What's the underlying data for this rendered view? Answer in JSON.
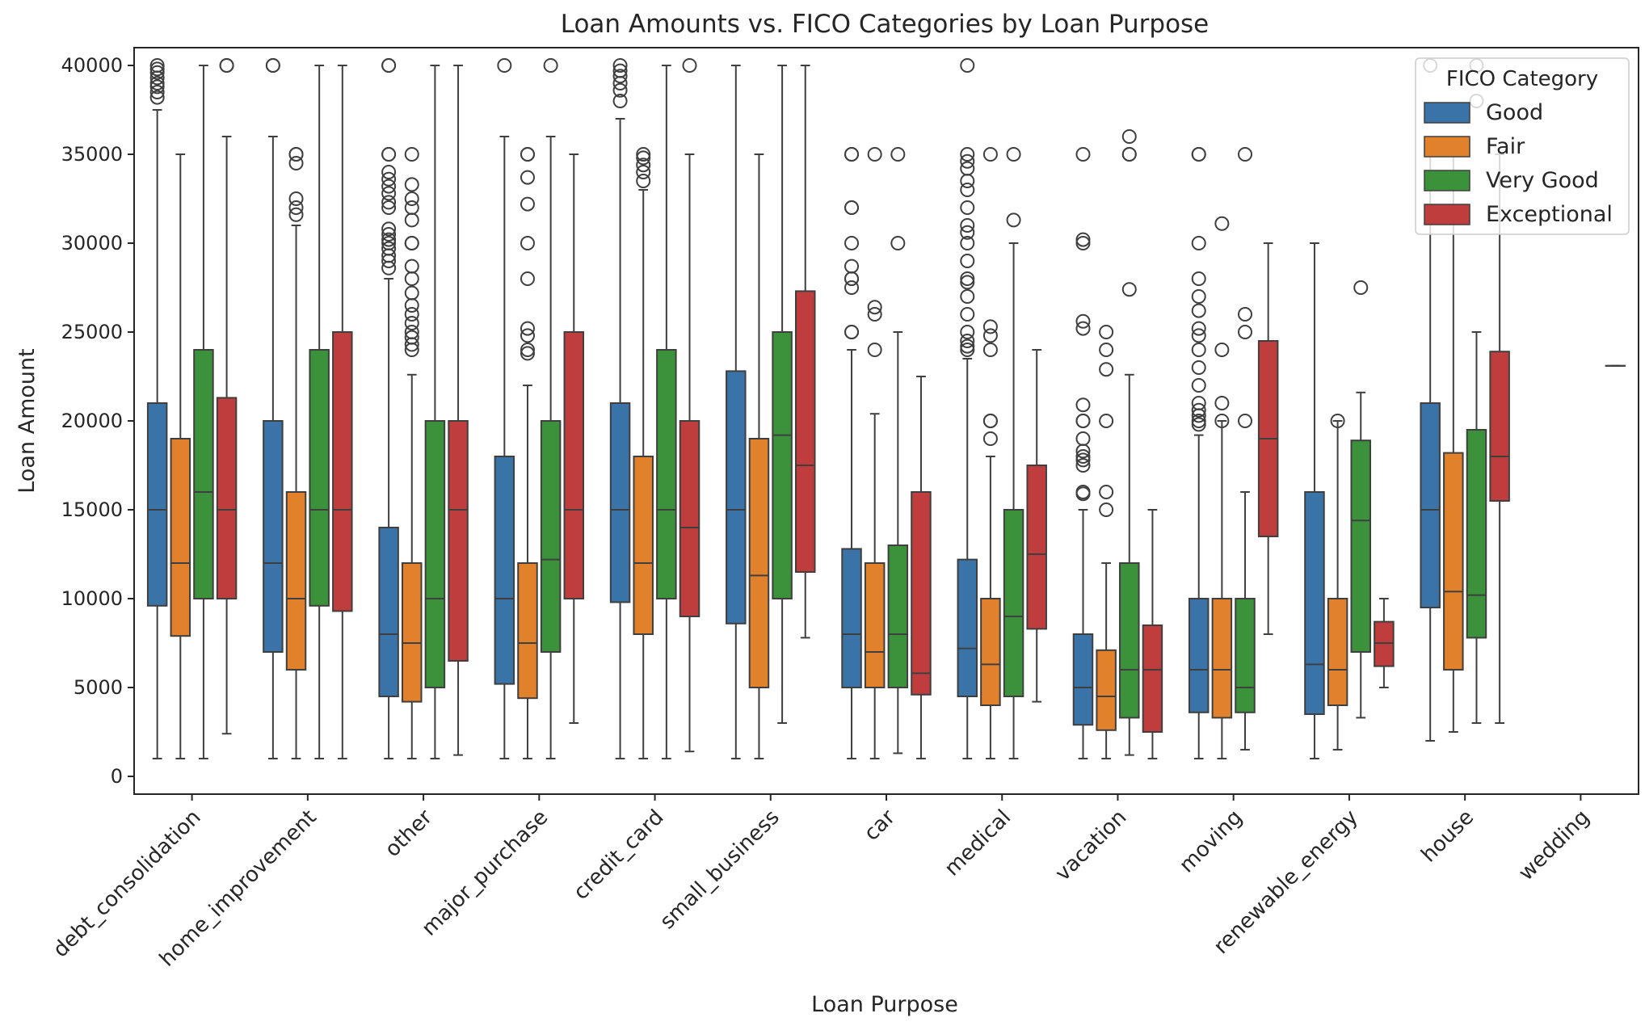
{
  "chart_data": {
    "type": "boxplot",
    "title": "Loan Amounts vs. FICO Categories by Loan Purpose",
    "xlabel": "Loan Purpose",
    "ylabel": "Loan Amount",
    "ylim": [
      -1000,
      41000
    ],
    "yticks": [
      0,
      5000,
      10000,
      15000,
      20000,
      25000,
      30000,
      35000,
      40000
    ],
    "grid": false,
    "legend": {
      "title": "FICO Category",
      "placement": "top-right",
      "entries": [
        "Good",
        "Fair",
        "Very Good",
        "Exceptional"
      ]
    },
    "series_colors": {
      "Good": "#3a73a7",
      "Fair": "#e1812c",
      "Very Good": "#3b923b",
      "Exceptional": "#c03d3e"
    },
    "categories": [
      "debt_consolidation",
      "home_improvement",
      "other",
      "major_purchase",
      "credit_card",
      "small_business",
      "car",
      "medical",
      "vacation",
      "moving",
      "renewable_energy",
      "house",
      "wedding"
    ],
    "series": [
      {
        "name": "Good",
        "boxes": [
          {
            "whislo": 1000,
            "q1": 9600,
            "med": 15000,
            "q3": 21000,
            "whishi": 37500,
            "fliers": [
              38200,
              38500,
              38800,
              39000,
              39300,
              39600,
              39800,
              40000
            ]
          },
          {
            "whislo": 1000,
            "q1": 7000,
            "med": 12000,
            "q3": 20000,
            "whishi": 36000,
            "fliers": [
              40000,
              40000
            ]
          },
          {
            "whislo": 1000,
            "q1": 4500,
            "med": 8000,
            "q3": 14000,
            "whishi": 28000,
            "fliers": [
              28600,
              29000,
              29300,
              29700,
              30000,
              30200,
              30500,
              30800,
              32000,
              32300,
              32800,
              33200,
              33600,
              34000,
              35000,
              35000,
              40000,
              40000
            ]
          },
          {
            "whislo": 1000,
            "q1": 5200,
            "med": 10000,
            "q3": 18000,
            "whishi": 36000,
            "fliers": [
              40000
            ]
          },
          {
            "whislo": 1000,
            "q1": 9800,
            "med": 15000,
            "q3": 21000,
            "whishi": 37000,
            "fliers": [
              38000,
              38600,
              39000,
              39400,
              39700,
              40000
            ]
          },
          {
            "whislo": 1000,
            "q1": 8600,
            "med": 15000,
            "q3": 22800,
            "whishi": 40000,
            "fliers": []
          },
          {
            "whislo": 1000,
            "q1": 5000,
            "med": 8000,
            "q3": 12800,
            "whishi": 24000,
            "fliers": [
              25000,
              25000,
              27500,
              28000,
              28000,
              28700,
              30000,
              32000,
              32000,
              35000,
              35000
            ]
          },
          {
            "whislo": 1000,
            "q1": 4500,
            "med": 7200,
            "q3": 12200,
            "whishi": 23500,
            "fliers": [
              24000,
              24200,
              24500,
              25000,
              26000,
              27000,
              27800,
              28000,
              29000,
              30000,
              30600,
              31000,
              32000,
              33000,
              33500,
              34200,
              34600,
              35000,
              40000
            ]
          },
          {
            "whislo": 1000,
            "q1": 2900,
            "med": 5000,
            "q3": 8000,
            "whishi": 15000,
            "fliers": [
              15900,
              16000,
              17500,
              17800,
              18000,
              18300,
              19000,
              20000,
              20000,
              20900,
              25200,
              25600,
              30000,
              30200,
              35000
            ]
          },
          {
            "whislo": 1000,
            "q1": 3600,
            "med": 6000,
            "q3": 10000,
            "whishi": 19200,
            "fliers": [
              19800,
              20000,
              20300,
              20600,
              21000,
              22000,
              23000,
              24000,
              24800,
              25200,
              26200,
              27000,
              28000,
              30000,
              35000,
              35000
            ]
          },
          {
            "whislo": 1000,
            "q1": 3500,
            "med": 6300,
            "q3": 16000,
            "whishi": 30000,
            "fliers": []
          },
          {
            "whislo": 2000,
            "q1": 9500,
            "med": 15000,
            "q3": 21000,
            "whishi": 35000,
            "fliers": [
              40000
            ]
          },
          null
        ]
      },
      {
        "name": "Fair",
        "boxes": [
          {
            "whislo": 1000,
            "q1": 7900,
            "med": 12000,
            "q3": 19000,
            "whishi": 35000,
            "fliers": []
          },
          {
            "whislo": 1000,
            "q1": 6000,
            "med": 10000,
            "q3": 16000,
            "whishi": 31000,
            "fliers": [
              31600,
              32000,
              32500,
              34500,
              35000,
              35000
            ]
          },
          {
            "whislo": 1000,
            "q1": 4200,
            "med": 7500,
            "q3": 12000,
            "whishi": 22600,
            "fliers": [
              24000,
              24300,
              24700,
              25000,
              25500,
              26000,
              26500,
              27200,
              28000,
              28700,
              30000,
              30000,
              31300,
              32000,
              32500,
              33300,
              35000
            ]
          },
          {
            "whislo": 1000,
            "q1": 4400,
            "med": 7500,
            "q3": 12000,
            "whishi": 22000,
            "fliers": [
              23800,
              24000,
              24800,
              25200,
              28000,
              30000,
              32200,
              33700,
              35000,
              35000
            ]
          },
          {
            "whislo": 1000,
            "q1": 8000,
            "med": 12000,
            "q3": 18000,
            "whishi": 33000,
            "fliers": [
              33500,
              34000,
              34400,
              34800,
              35000
            ]
          },
          {
            "whislo": 1000,
            "q1": 5000,
            "med": 11300,
            "q3": 19000,
            "whishi": 35000,
            "fliers": []
          },
          {
            "whislo": 1000,
            "q1": 5000,
            "med": 7000,
            "q3": 12000,
            "whishi": 20400,
            "fliers": [
              24000,
              26000,
              26400,
              35000
            ]
          },
          {
            "whislo": 1000,
            "q1": 4000,
            "med": 6300,
            "q3": 10000,
            "whishi": 18000,
            "fliers": [
              19000,
              20000,
              20000,
              24000,
              24800,
              25300,
              35000
            ]
          },
          {
            "whislo": 1000,
            "q1": 2600,
            "med": 4500,
            "q3": 7100,
            "whishi": 12000,
            "fliers": [
              15000,
              16000,
              20000,
              22900,
              24000,
              25000
            ]
          },
          {
            "whislo": 1000,
            "q1": 3300,
            "med": 6000,
            "q3": 10000,
            "whishi": 20000,
            "fliers": [
              20000,
              21000,
              24000,
              31100
            ]
          },
          {
            "whislo": 1500,
            "q1": 4000,
            "med": 6000,
            "q3": 10000,
            "whishi": 20000,
            "fliers": [
              20000
            ]
          },
          {
            "whislo": 2500,
            "q1": 6000,
            "med": 10400,
            "q3": 18200,
            "whishi": 35000,
            "fliers": []
          },
          null
        ]
      },
      {
        "name": "Very Good",
        "boxes": [
          {
            "whislo": 1000,
            "q1": 10000,
            "med": 16000,
            "q3": 24000,
            "whishi": 40000,
            "fliers": []
          },
          {
            "whislo": 1000,
            "q1": 9600,
            "med": 15000,
            "q3": 24000,
            "whishi": 40000,
            "fliers": []
          },
          {
            "whislo": 1000,
            "q1": 5000,
            "med": 10000,
            "q3": 20000,
            "whishi": 40000,
            "fliers": []
          },
          {
            "whislo": 1000,
            "q1": 7000,
            "med": 12200,
            "q3": 20000,
            "whishi": 36000,
            "fliers": [
              40000
            ]
          },
          {
            "whislo": 1000,
            "q1": 10000,
            "med": 15000,
            "q3": 24000,
            "whishi": 40000,
            "fliers": []
          },
          {
            "whislo": 3000,
            "q1": 10000,
            "med": 19200,
            "q3": 25000,
            "whishi": 40000,
            "fliers": []
          },
          {
            "whislo": 1300,
            "q1": 5000,
            "med": 8000,
            "q3": 13000,
            "whishi": 25000,
            "fliers": [
              30000,
              35000
            ]
          },
          {
            "whislo": 1000,
            "q1": 4500,
            "med": 9000,
            "q3": 15000,
            "whishi": 30000,
            "fliers": [
              31300,
              35000
            ]
          },
          {
            "whislo": 1200,
            "q1": 3300,
            "med": 6000,
            "q3": 12000,
            "whishi": 22600,
            "fliers": [
              27400,
              35000,
              35000,
              36000
            ]
          },
          {
            "whislo": 1500,
            "q1": 3600,
            "med": 5000,
            "q3": 10000,
            "whishi": 16000,
            "fliers": [
              20000,
              25000,
              26000,
              35000
            ]
          },
          {
            "whislo": 3300,
            "q1": 7000,
            "med": 14400,
            "q3": 18900,
            "whishi": 21600,
            "fliers": [
              27500
            ]
          },
          {
            "whislo": 3000,
            "q1": 7800,
            "med": 10200,
            "q3": 19500,
            "whishi": 25000,
            "fliers": [
              38000,
              40000
            ]
          },
          null
        ]
      },
      {
        "name": "Exceptional",
        "boxes": [
          {
            "whislo": 2400,
            "q1": 10000,
            "med": 15000,
            "q3": 21300,
            "whishi": 36000,
            "fliers": [
              40000,
              40000
            ]
          },
          {
            "whislo": 1000,
            "q1": 9300,
            "med": 15000,
            "q3": 25000,
            "whishi": 40000,
            "fliers": []
          },
          {
            "whislo": 1200,
            "q1": 6500,
            "med": 15000,
            "q3": 20000,
            "whishi": 40000,
            "fliers": []
          },
          {
            "whislo": 3000,
            "q1": 10000,
            "med": 15000,
            "q3": 25000,
            "whishi": 35000,
            "fliers": []
          },
          {
            "whislo": 1400,
            "q1": 9000,
            "med": 14000,
            "q3": 20000,
            "whishi": 35000,
            "fliers": [
              40000
            ]
          },
          {
            "whislo": 7800,
            "q1": 11500,
            "med": 17500,
            "q3": 27300,
            "whishi": 40000,
            "fliers": []
          },
          {
            "whislo": 1000,
            "q1": 4600,
            "med": 5800,
            "q3": 16000,
            "whishi": 22500,
            "fliers": []
          },
          {
            "whislo": 4200,
            "q1": 8300,
            "med": 12500,
            "q3": 17500,
            "whishi": 24000,
            "fliers": []
          },
          {
            "whislo": 1000,
            "q1": 2500,
            "med": 6000,
            "q3": 8500,
            "whishi": 15000,
            "fliers": []
          },
          {
            "whislo": 8000,
            "q1": 13500,
            "med": 19000,
            "q3": 24500,
            "whishi": 30000,
            "fliers": []
          },
          {
            "whislo": 5000,
            "q1": 6200,
            "med": 7500,
            "q3": 8700,
            "whishi": 10000,
            "fliers": []
          },
          {
            "whislo": 3000,
            "q1": 15500,
            "med": 18000,
            "q3": 23900,
            "whishi": 35000,
            "fliers": []
          },
          {
            "whislo": 23100,
            "q1": 23100,
            "med": 23100,
            "q3": 23100,
            "whishi": 23100,
            "fliers": []
          }
        ]
      }
    ]
  }
}
